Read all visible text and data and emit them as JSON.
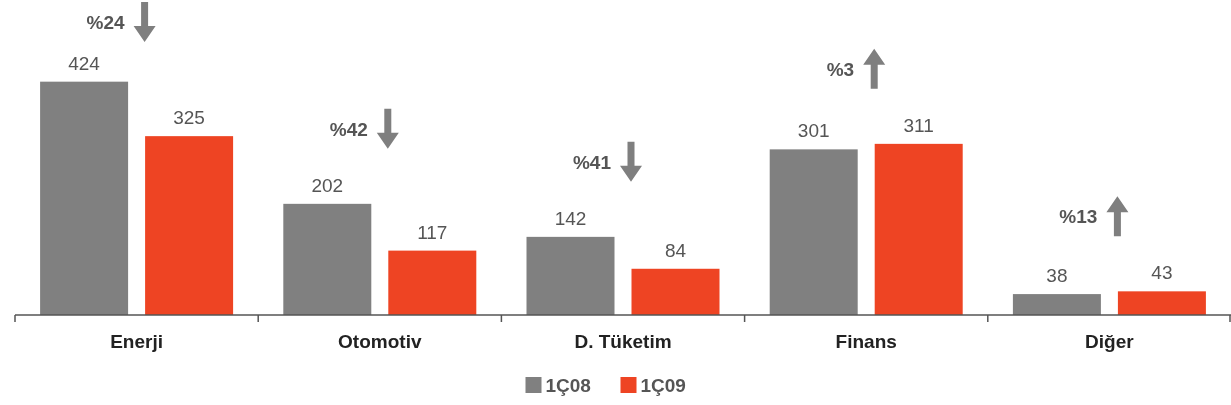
{
  "chart_data": {
    "type": "bar",
    "categories": [
      "Enerji",
      "Otomotiv",
      "D. Tüketim",
      "Finans",
      "Diğer"
    ],
    "series": [
      {
        "name": "1Ç08",
        "color": "#808080",
        "values": [
          424,
          202,
          142,
          301,
          38
        ]
      },
      {
        "name": "1Ç09",
        "color": "#ee4423",
        "values": [
          325,
          117,
          84,
          311,
          43
        ]
      }
    ],
    "data_labels": true,
    "legend": "bottom",
    "annotations": [
      "%24",
      "%42",
      "%41",
      "%3",
      "%13"
    ]
  }
}
